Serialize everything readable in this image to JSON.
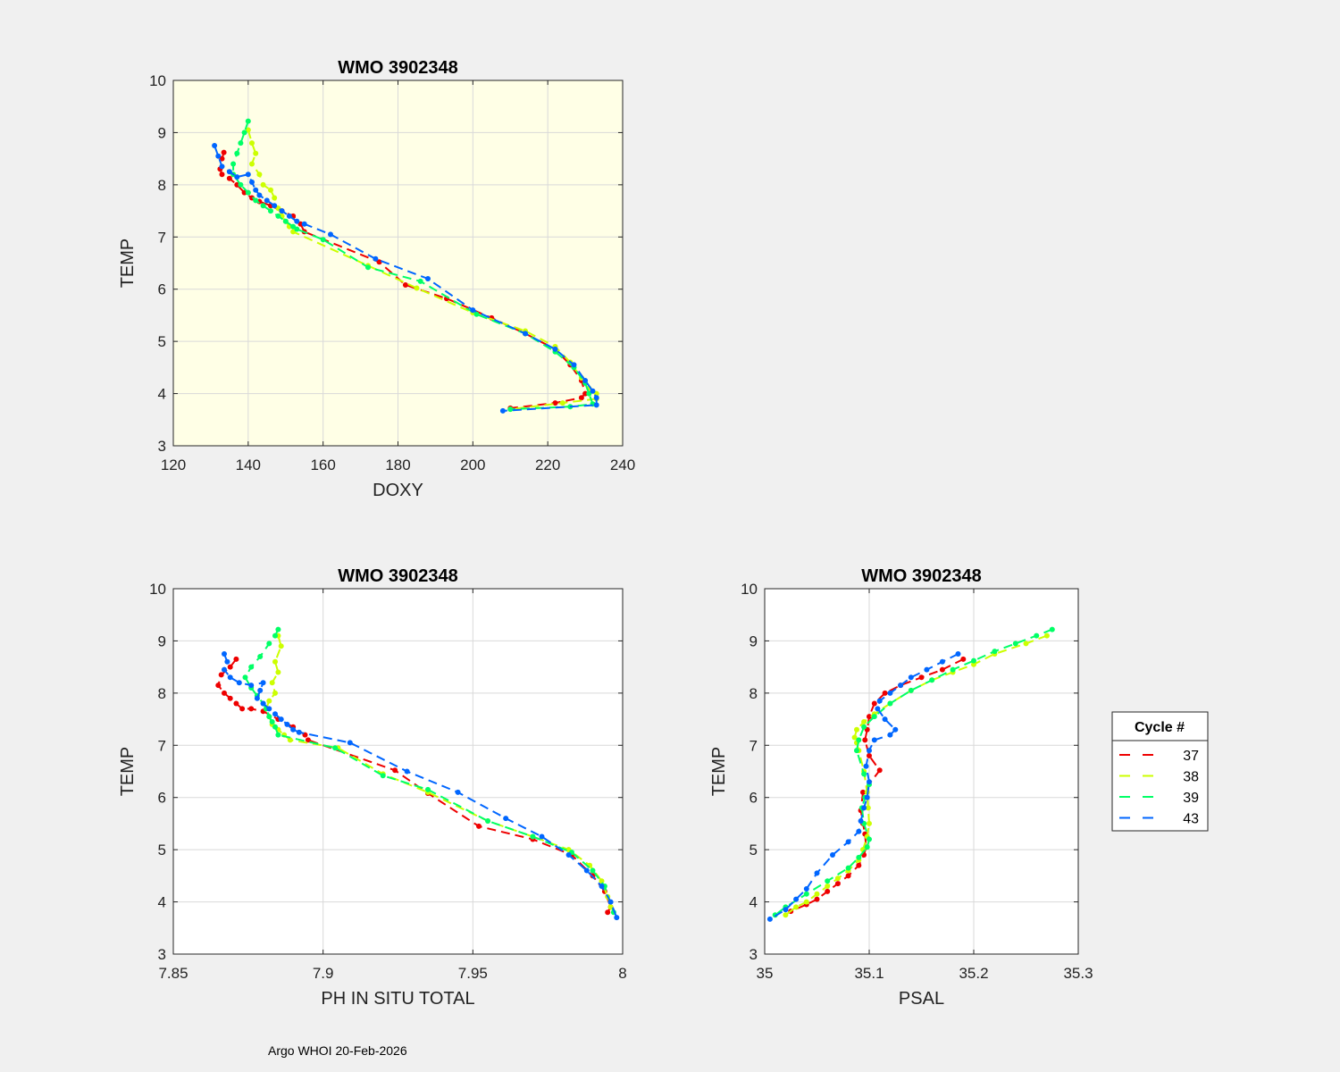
{
  "footer": "Argo WHOI 20-Feb-2026",
  "legend": {
    "title": "Cycle #",
    "entries": [
      {
        "label": "37",
        "color": "#ee0000"
      },
      {
        "label": "38",
        "color": "#ccff00"
      },
      {
        "label": "39",
        "color": "#00ff66"
      },
      {
        "label": "43",
        "color": "#0066ff"
      }
    ]
  },
  "chart_data": [
    {
      "type": "line",
      "title": "WMO 3902348",
      "xlabel": "DOXY",
      "ylabel": "TEMP",
      "xlim": [
        120,
        240
      ],
      "ylim": [
        3,
        10
      ],
      "xticks": [
        120,
        140,
        160,
        180,
        200,
        220,
        240
      ],
      "xtick_labels": [
        "120",
        "140",
        "160",
        "180",
        "200",
        "220",
        "240"
      ],
      "yticks": [
        3,
        4,
        5,
        6,
        7,
        8,
        9,
        10
      ],
      "ytick_labels": [
        "3",
        "4",
        "5",
        "6",
        "7",
        "8",
        "9",
        "10"
      ],
      "background": "#ffffe6",
      "grid": true,
      "series": [
        {
          "name": "37",
          "color": "#ee0000",
          "x": [
            133.5,
            133,
            132.5,
            133,
            135,
            137,
            139,
            141,
            143,
            146,
            149,
            152,
            154,
            155,
            175,
            182,
            193,
            205,
            214,
            222,
            226,
            229,
            230,
            229,
            222,
            210
          ],
          "y": [
            8.62,
            8.5,
            8.3,
            8.2,
            8.12,
            8.0,
            7.85,
            7.75,
            7.68,
            7.6,
            7.5,
            7.4,
            7.25,
            7.1,
            6.52,
            6.08,
            5.82,
            5.45,
            5.15,
            4.85,
            4.55,
            4.25,
            4.0,
            3.92,
            3.82,
            3.72
          ]
        },
        {
          "name": "38",
          "color": "#ccff00",
          "x": [
            140,
            141,
            142,
            141,
            143,
            144,
            146,
            147,
            148,
            149,
            150,
            151,
            152,
            172,
            185,
            200,
            214,
            222,
            226,
            229,
            231,
            233,
            233,
            224,
            210
          ],
          "y": [
            9.05,
            8.8,
            8.6,
            8.4,
            8.2,
            8.0,
            7.9,
            7.75,
            7.55,
            7.4,
            7.3,
            7.2,
            7.1,
            6.45,
            6.02,
            5.55,
            5.2,
            4.9,
            4.6,
            4.3,
            4.1,
            4.0,
            3.9,
            3.82,
            3.7
          ]
        },
        {
          "name": "39",
          "color": "#00ff66",
          "x": [
            140,
            139,
            138,
            137,
            136,
            136,
            138,
            140,
            142,
            144,
            146,
            148,
            150,
            152,
            153,
            160,
            172,
            186,
            201,
            214,
            222,
            227,
            230,
            231,
            232,
            226,
            210
          ],
          "y": [
            9.22,
            9.0,
            8.8,
            8.6,
            8.4,
            8.2,
            8.0,
            7.85,
            7.7,
            7.6,
            7.5,
            7.4,
            7.3,
            7.2,
            7.15,
            6.95,
            6.42,
            6.15,
            5.52,
            5.15,
            4.8,
            4.5,
            4.2,
            4.0,
            3.8,
            3.75,
            3.7
          ]
        },
        {
          "name": "43",
          "color": "#0066ff",
          "x": [
            131,
            132,
            133,
            135,
            137,
            140,
            141,
            142,
            143,
            145,
            147,
            149,
            151,
            153,
            155,
            162,
            174,
            188,
            200,
            214,
            222,
            227,
            230,
            232,
            233,
            233,
            208
          ],
          "y": [
            8.75,
            8.55,
            8.35,
            8.25,
            8.15,
            8.2,
            8.05,
            7.9,
            7.8,
            7.7,
            7.6,
            7.5,
            7.4,
            7.3,
            7.25,
            7.05,
            6.58,
            6.2,
            5.6,
            5.15,
            4.85,
            4.55,
            4.25,
            4.05,
            3.92,
            3.78,
            3.67
          ]
        }
      ]
    },
    {
      "type": "line",
      "title": "WMO 3902348",
      "xlabel": "PH IN SITU TOTAL",
      "ylabel": "TEMP",
      "xlim": [
        7.85,
        8.0
      ],
      "ylim": [
        3,
        10
      ],
      "xticks": [
        7.85,
        7.9,
        7.95,
        8.0
      ],
      "xtick_labels": [
        "7.85",
        "7.9",
        "7.95",
        "8"
      ],
      "yticks": [
        3,
        4,
        5,
        6,
        7,
        8,
        9,
        10
      ],
      "ytick_labels": [
        "3",
        "4",
        "5",
        "6",
        "7",
        "8",
        "9",
        "10"
      ],
      "background": "#ffffff",
      "grid": true,
      "series": [
        {
          "name": "37",
          "color": "#ee0000",
          "x": [
            7.871,
            7.869,
            7.866,
            7.865,
            7.867,
            7.869,
            7.871,
            7.873,
            7.876,
            7.88,
            7.885,
            7.89,
            7.894,
            7.895,
            7.924,
            7.935,
            7.952,
            7.97,
            7.983,
            7.99,
            7.994,
            7.996,
            7.995
          ],
          "y": [
            8.65,
            8.5,
            8.35,
            8.15,
            8.0,
            7.9,
            7.8,
            7.7,
            7.7,
            7.65,
            7.5,
            7.35,
            7.2,
            7.1,
            6.52,
            6.08,
            5.45,
            5.2,
            4.9,
            4.5,
            4.2,
            3.9,
            3.8
          ]
        },
        {
          "name": "38",
          "color": "#ccff00",
          "x": [
            7.885,
            7.886,
            7.884,
            7.885,
            7.883,
            7.884,
            7.882,
            7.881,
            7.882,
            7.883,
            7.885,
            7.887,
            7.889,
            7.905,
            7.92,
            7.935,
            7.955,
            7.97,
            7.982,
            7.989,
            7.993,
            7.995,
            7.996
          ],
          "y": [
            9.1,
            8.9,
            8.6,
            8.4,
            8.2,
            8.0,
            7.85,
            7.7,
            7.55,
            7.4,
            7.3,
            7.2,
            7.1,
            6.95,
            6.45,
            6.1,
            5.55,
            5.25,
            5.0,
            4.7,
            4.4,
            4.1,
            3.9
          ]
        },
        {
          "name": "39",
          "color": "#00ff66",
          "x": [
            7.885,
            7.884,
            7.882,
            7.879,
            7.876,
            7.874,
            7.876,
            7.878,
            7.88,
            7.881,
            7.882,
            7.883,
            7.884,
            7.885,
            7.904,
            7.92,
            7.935,
            7.955,
            7.97,
            7.983,
            7.99,
            7.994,
            7.997
          ],
          "y": [
            9.22,
            9.1,
            8.95,
            8.7,
            8.5,
            8.3,
            8.1,
            7.95,
            7.8,
            7.7,
            7.55,
            7.45,
            7.35,
            7.2,
            6.95,
            6.42,
            6.15,
            5.55,
            5.25,
            4.95,
            4.6,
            4.3,
            3.8
          ]
        },
        {
          "name": "43",
          "color": "#0066ff",
          "x": [
            7.867,
            7.868,
            7.867,
            7.869,
            7.872,
            7.876,
            7.88,
            7.879,
            7.878,
            7.88,
            7.882,
            7.884,
            7.886,
            7.888,
            7.89,
            7.892,
            7.909,
            7.928,
            7.945,
            7.961,
            7.973,
            7.982,
            7.988,
            7.993,
            7.996,
            7.998
          ],
          "y": [
            8.75,
            8.6,
            8.45,
            8.3,
            8.2,
            8.15,
            8.2,
            8.05,
            7.9,
            7.8,
            7.7,
            7.6,
            7.5,
            7.4,
            7.3,
            7.25,
            7.05,
            6.5,
            6.1,
            5.6,
            5.25,
            4.9,
            4.6,
            4.3,
            4.0,
            3.7
          ]
        }
      ]
    },
    {
      "type": "line",
      "title": "WMO 3902348",
      "xlabel": "PSAL",
      "ylabel": "TEMP",
      "xlim": [
        35,
        35.3
      ],
      "ylim": [
        3,
        10
      ],
      "xticks": [
        35,
        35.1,
        35.2,
        35.3
      ],
      "xtick_labels": [
        "35",
        "35.1",
        "35.2",
        "35.3"
      ],
      "yticks": [
        3,
        4,
        5,
        6,
        7,
        8,
        9,
        10
      ],
      "ytick_labels": [
        "3",
        "4",
        "5",
        "6",
        "7",
        "8",
        "9",
        "10"
      ],
      "background": "#ffffff",
      "grid": true,
      "series": [
        {
          "name": "37",
          "color": "#ee0000",
          "x": [
            35.19,
            35.17,
            35.15,
            35.13,
            35.115,
            35.105,
            35.1,
            35.098,
            35.096,
            35.1,
            35.11,
            35.094,
            35.092,
            35.094,
            35.096,
            35.097,
            35.095,
            35.09,
            35.08,
            35.07,
            35.06,
            35.05,
            35.04,
            35.025
          ],
          "y": [
            8.65,
            8.45,
            8.3,
            8.15,
            8.0,
            7.8,
            7.55,
            7.3,
            7.1,
            6.8,
            6.52,
            6.1,
            5.75,
            5.5,
            5.3,
            5.05,
            4.9,
            4.7,
            4.5,
            4.35,
            4.2,
            4.05,
            3.95,
            3.82
          ]
        },
        {
          "name": "38",
          "color": "#ccff00",
          "x": [
            35.27,
            35.25,
            35.22,
            35.2,
            35.18,
            35.16,
            35.14,
            35.12,
            35.105,
            35.095,
            35.088,
            35.086,
            35.088,
            35.09,
            35.095,
            35.098,
            35.099,
            35.1,
            35.098,
            35.094,
            35.09,
            35.08,
            35.07,
            35.06,
            35.05,
            35.04,
            35.03,
            35.02
          ],
          "y": [
            9.1,
            8.95,
            8.75,
            8.55,
            8.4,
            8.25,
            8.05,
            7.8,
            7.6,
            7.45,
            7.3,
            7.15,
            7.05,
            6.9,
            6.5,
            6.1,
            5.8,
            5.5,
            5.25,
            5.0,
            4.8,
            4.6,
            4.45,
            4.3,
            4.15,
            4.0,
            3.9,
            3.75
          ]
        },
        {
          "name": "39",
          "color": "#00ff66",
          "x": [
            35.275,
            35.26,
            35.24,
            35.22,
            35.2,
            35.18,
            35.16,
            35.14,
            35.12,
            35.105,
            35.095,
            35.09,
            35.088,
            35.095,
            35.1,
            35.096,
            35.093,
            35.095,
            35.1,
            35.098,
            35.09,
            35.08,
            35.06,
            35.04,
            35.02,
            35.01
          ],
          "y": [
            9.22,
            9.1,
            8.95,
            8.8,
            8.62,
            8.45,
            8.25,
            8.05,
            7.8,
            7.55,
            7.35,
            7.1,
            6.9,
            6.45,
            6.25,
            6.0,
            5.8,
            5.5,
            5.2,
            5.05,
            4.85,
            4.65,
            4.4,
            4.15,
            3.9,
            3.75
          ]
        },
        {
          "name": "43",
          "color": "#0066ff",
          "x": [
            35.185,
            35.17,
            35.155,
            35.14,
            35.13,
            35.12,
            35.11,
            35.108,
            35.115,
            35.125,
            35.12,
            35.105,
            35.1,
            35.097,
            35.1,
            35.098,
            35.095,
            35.092,
            35.09,
            35.08,
            35.065,
            35.05,
            35.04,
            35.03,
            35.02,
            35.005
          ],
          "y": [
            8.75,
            8.6,
            8.45,
            8.3,
            8.15,
            8.0,
            7.85,
            7.7,
            7.5,
            7.3,
            7.2,
            7.1,
            6.9,
            6.6,
            6.3,
            6.0,
            5.8,
            5.55,
            5.35,
            5.15,
            4.9,
            4.55,
            4.25,
            4.05,
            3.85,
            3.67
          ]
        }
      ]
    }
  ]
}
